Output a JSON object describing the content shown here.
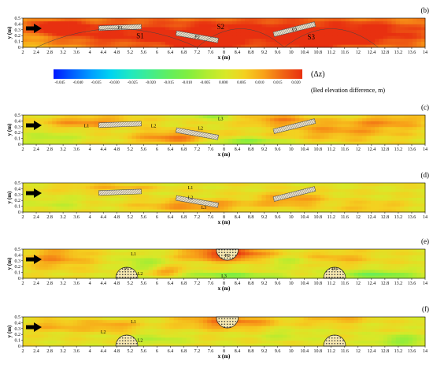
{
  "chart_data": {
    "type": "heatmap",
    "xlabel": "x (m)",
    "ylabel": "y (m)",
    "x_ticks": [
      "2",
      "2.4",
      "2.8",
      "3.2",
      "3.6",
      "4",
      "4.4",
      "4.8",
      "5.2",
      "5.6",
      "6",
      "6.4",
      "6.8",
      "7.2",
      "7.6",
      "8",
      "8.4",
      "8.8",
      "9.2",
      "9.6",
      "10",
      "10.4",
      "10.8",
      "11.2",
      "11.6",
      "12",
      "12.4",
      "12.8",
      "13.2",
      "13.6",
      "14"
    ],
    "y_ticks": [
      "0",
      "0.1",
      "0.2",
      "0.3",
      "0.4",
      "0.5"
    ],
    "xlim": [
      2,
      14
    ],
    "ylim": [
      0,
      0.5
    ],
    "colorbar": {
      "title": "(Δz)",
      "label": "(Bed elevation difference, m)",
      "ticks": [
        "-0.045",
        "-0.040",
        "-0.035",
        "-0.030",
        "-0.025",
        "-0.020",
        "-0.015",
        "-0.010",
        "-0.005",
        "0.000",
        "0.005",
        "0.010",
        "0.015",
        "0.020"
      ],
      "colors": [
        "#0018ff",
        "#0060ff",
        "#00a0ff",
        "#00d4f0",
        "#20e8c0",
        "#40ec90",
        "#60ee60",
        "#80ee40",
        "#b0ec30",
        "#d8e828",
        "#f4d020",
        "#f8a018",
        "#f06414",
        "#e83010"
      ]
    },
    "flow_arrow": "flow-direction",
    "panels": [
      {
        "label": "(b)",
        "shape": "plate",
        "structures": [
          {
            "name": "P1",
            "x": 4.9,
            "y": 0.34
          },
          {
            "name": "P2",
            "x": 7.2,
            "y": 0.18
          },
          {
            "name": "P3",
            "x": 10.1,
            "y": 0.31
          }
        ],
        "annotations": [
          {
            "text": "S1",
            "x": 5.5,
            "y": 0.18
          },
          {
            "text": "S2",
            "x": 7.9,
            "y": 0.34
          },
          {
            "text": "S3",
            "x": 10.6,
            "y": 0.16
          }
        ]
      },
      {
        "label": "(c)",
        "shape": "plate",
        "structures": [
          {
            "name": "",
            "x": 4.9,
            "y": 0.34
          },
          {
            "name": "",
            "x": 7.2,
            "y": 0.18
          },
          {
            "name": "",
            "x": 10.1,
            "y": 0.31
          }
        ],
        "annotations": [
          {
            "text": "L1",
            "x": 3.9,
            "y": 0.32
          },
          {
            "text": "L2",
            "x": 5.9,
            "y": 0.32
          },
          {
            "text": "L3",
            "x": 7.9,
            "y": 0.44
          },
          {
            "text": "L2",
            "x": 7.3,
            "y": 0.28
          }
        ]
      },
      {
        "label": "(d)",
        "shape": "plate",
        "structures": [
          {
            "name": "",
            "x": 4.9,
            "y": 0.34
          },
          {
            "name": "",
            "x": 7.2,
            "y": 0.18
          },
          {
            "name": "",
            "x": 10.1,
            "y": 0.31
          }
        ],
        "annotations": [
          {
            "text": "L1",
            "x": 7.0,
            "y": 0.42
          },
          {
            "text": "L2",
            "x": 7.0,
            "y": 0.25
          },
          {
            "text": "L3",
            "x": 7.4,
            "y": 0.08
          }
        ]
      },
      {
        "label": "(e)",
        "shape": "semicircle",
        "structures": [
          {
            "name": "P1",
            "x": 5.1,
            "y": 0.0
          },
          {
            "name": "P2",
            "x": 8.1,
            "y": 0.5
          },
          {
            "name": "P3",
            "x": 11.3,
            "y": 0.0
          }
        ],
        "annotations": [
          {
            "text": "L1",
            "x": 5.3,
            "y": 0.42
          },
          {
            "text": "L2",
            "x": 5.5,
            "y": 0.08
          },
          {
            "text": "L3",
            "x": 8.0,
            "y": 0.04
          }
        ]
      },
      {
        "label": "(f)",
        "shape": "semicircle",
        "structures": [
          {
            "name": "",
            "x": 5.1,
            "y": 0.0
          },
          {
            "name": "",
            "x": 8.1,
            "y": 0.5
          },
          {
            "name": "",
            "x": 11.3,
            "y": 0.0
          }
        ],
        "annotations": [
          {
            "text": "L1",
            "x": 5.3,
            "y": 0.42
          },
          {
            "text": "L2",
            "x": 4.4,
            "y": 0.24
          },
          {
            "text": "L2",
            "x": 5.5,
            "y": 0.1
          }
        ]
      }
    ],
    "blobs": [
      [
        [
          4.5,
          0.25,
          1.8,
          0.25,
          0.01
        ],
        [
          8.5,
          0.25,
          3.0,
          0.3,
          0.014
        ],
        [
          12.5,
          0.25,
          2.0,
          0.25,
          0.012
        ],
        [
          7.2,
          0.1,
          0.8,
          0.12,
          0.02
        ],
        [
          10.8,
          0.12,
          0.8,
          0.1,
          0.018
        ],
        [
          3.0,
          0.35,
          0.8,
          0.12,
          0.015
        ]
      ],
      [
        [
          4.0,
          0.38,
          1.4,
          0.1,
          0.01
        ],
        [
          6.5,
          0.12,
          1.2,
          0.12,
          0.011
        ],
        [
          8.6,
          0.05,
          1.2,
          0.06,
          -0.012
        ],
        [
          11.5,
          0.25,
          2.0,
          0.18,
          0.008
        ],
        [
          2.8,
          0.1,
          0.8,
          0.12,
          -0.006
        ],
        [
          9.6,
          0.42,
          0.9,
          0.08,
          0.009
        ],
        [
          13.0,
          0.4,
          1.0,
          0.1,
          0.007
        ],
        [
          7.6,
          0.48,
          0.5,
          0.05,
          -0.008
        ]
      ],
      [
        [
          7.2,
          0.12,
          1.6,
          0.1,
          0.01
        ],
        [
          10.0,
          0.22,
          1.0,
          0.12,
          0.009
        ],
        [
          4.5,
          0.42,
          1.5,
          0.06,
          0.006
        ],
        [
          12.4,
          0.1,
          1.0,
          0.1,
          0.005
        ],
        [
          3.0,
          0.15,
          0.8,
          0.1,
          -0.004
        ]
      ],
      [
        [
          8.1,
          0.42,
          1.2,
          0.12,
          0.018
        ],
        [
          8.1,
          0.05,
          1.6,
          0.06,
          -0.012
        ],
        [
          3.0,
          0.35,
          1.0,
          0.18,
          0.009
        ],
        [
          5.6,
          0.25,
          0.6,
          0.15,
          -0.008
        ],
        [
          11.3,
          0.35,
          1.2,
          0.12,
          0.006
        ],
        [
          12.6,
          0.06,
          1.2,
          0.08,
          -0.014
        ],
        [
          6.2,
          0.12,
          0.6,
          0.08,
          0.01
        ],
        [
          10.0,
          0.3,
          0.8,
          0.1,
          -0.006
        ]
      ],
      [
        [
          8.1,
          0.42,
          1.4,
          0.12,
          0.012
        ],
        [
          4.6,
          0.35,
          0.8,
          0.1,
          0.008
        ],
        [
          6.0,
          0.12,
          0.8,
          0.1,
          -0.006
        ],
        [
          11.3,
          0.45,
          1.0,
          0.08,
          0.006
        ],
        [
          13.3,
          0.1,
          0.8,
          0.1,
          -0.01
        ],
        [
          3.0,
          0.35,
          0.8,
          0.1,
          0.007
        ],
        [
          9.8,
          0.2,
          0.8,
          0.1,
          -0.004
        ]
      ]
    ]
  }
}
